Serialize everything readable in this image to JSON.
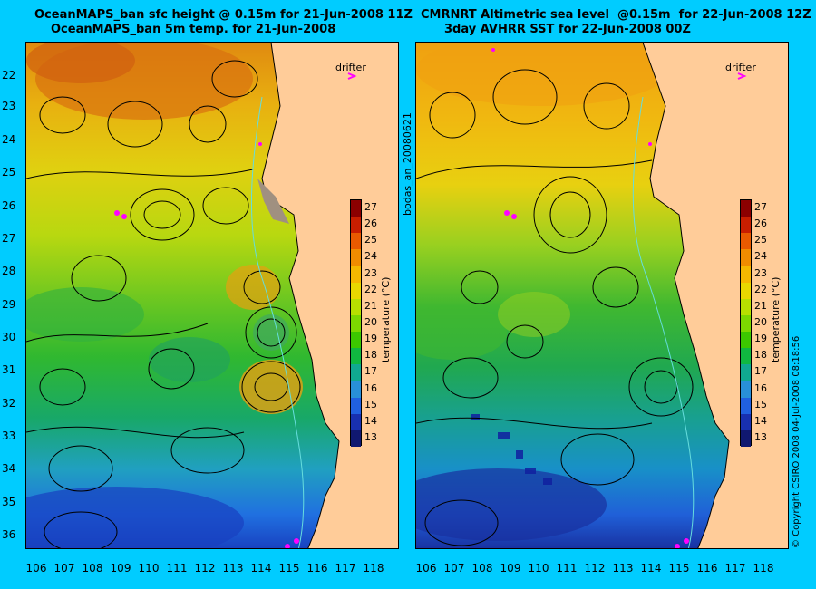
{
  "left_panel": {
    "title_line1": "OceanMAPS_ban sfc height @ 0.15m for 21-Jun-2008 11Z",
    "title_line2": "OceanMAPS_ban 5m temp. for 21-Jun-2008",
    "drifter_label": "drifter"
  },
  "right_panel": {
    "title_line1": "CMRNRT Altimetric sea level  @0.15m  for 22-Jun-2008 12Z",
    "title_line2": "3day AVHRR SST for 22-Jun-2008 00Z",
    "drifter_label": "drifter"
  },
  "side_label": "bodas_an_20080621",
  "copyright": "© Copyright CSIRO 2008    04-Jul-2008 08:18:56",
  "lat_ticks": [
    "22",
    "23",
    "24",
    "25",
    "26",
    "27",
    "28",
    "29",
    "30",
    "31",
    "32",
    "33",
    "34",
    "35",
    "36"
  ],
  "lon_ticks": [
    "106",
    "107",
    "108",
    "109",
    "110",
    "111",
    "112",
    "113",
    "114",
    "115",
    "116",
    "117",
    "118"
  ],
  "colorbar": {
    "title": "temperature (°C)",
    "ticks": [
      "27",
      "26",
      "25",
      "24",
      "23",
      "22",
      "21",
      "20",
      "19",
      "18",
      "17",
      "16",
      "15",
      "14",
      "13"
    ],
    "colors": [
      "#8B0000",
      "#C81E00",
      "#E85A00",
      "#F08C00",
      "#F5B800",
      "#E8D800",
      "#B8E000",
      "#7CD800",
      "#3CC800",
      "#10B840",
      "#10A890",
      "#2890D8",
      "#2060E0",
      "#1830B0",
      "#101870"
    ]
  }
}
